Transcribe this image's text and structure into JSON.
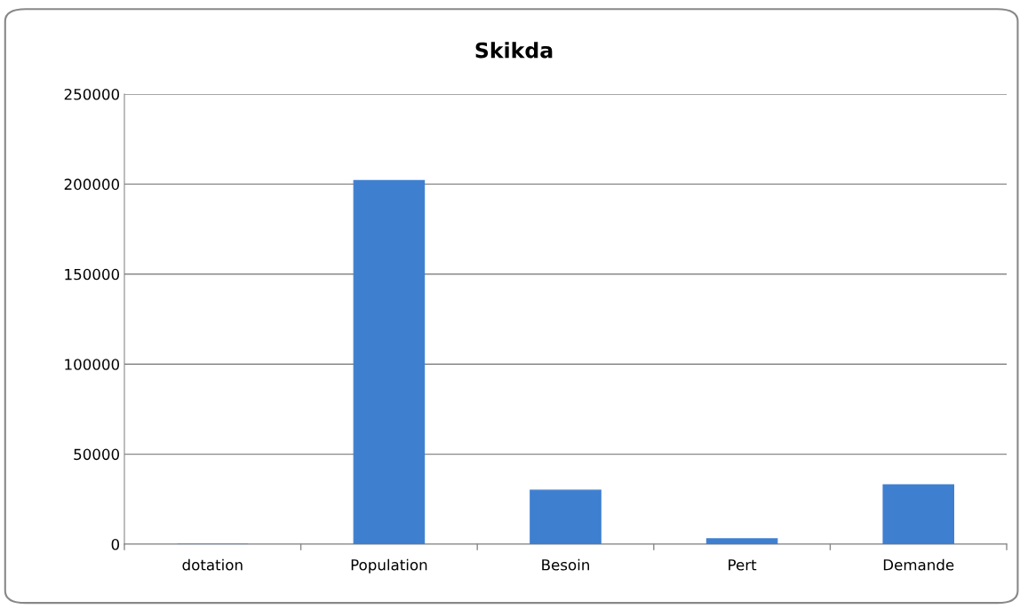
{
  "chart_data": {
    "type": "bar",
    "title": "Skikda",
    "categories": [
      "dotation",
      "Population",
      "Besoin",
      "Pert",
      "Demande"
    ],
    "values": [
      0,
      202000,
      30000,
      3000,
      33000
    ],
    "color": "#3f7fd0",
    "ylim": [
      0,
      250000
    ],
    "yticks": [
      0,
      50000,
      100000,
      150000,
      200000,
      250000
    ],
    "grid": "y"
  }
}
